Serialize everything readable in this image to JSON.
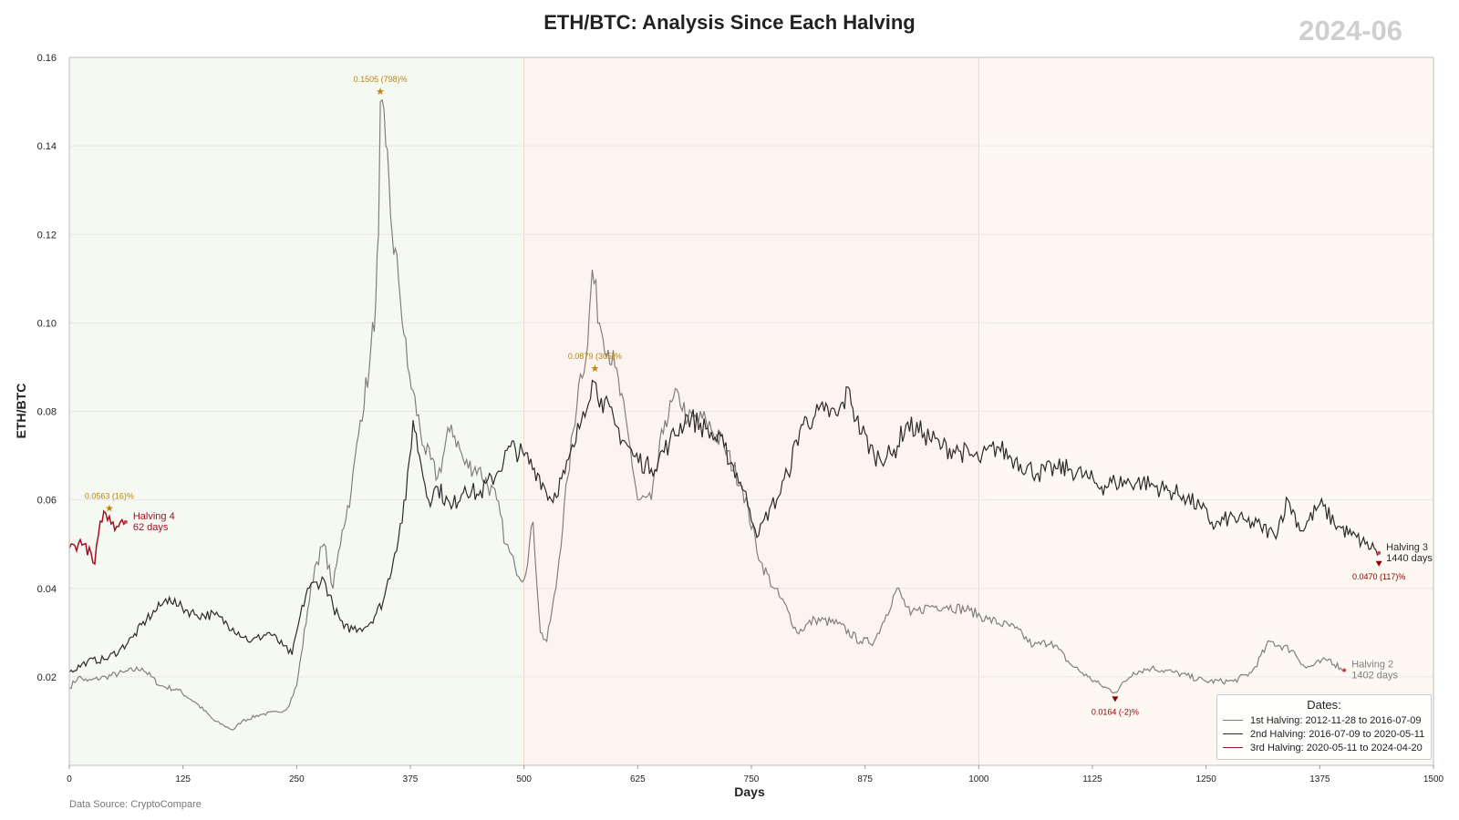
{
  "header": {
    "watermark": "2024-06"
  },
  "footer": {
    "source": "Data Source: CryptoCompare"
  },
  "legend": {
    "title": "Dates:",
    "items": [
      {
        "label": "1st Halving: 2012-11-28 to 2016-07-09",
        "color": "#808080"
      },
      {
        "label": "2nd Halving: 2016-07-09 to 2020-05-11",
        "color": "#2b2b2b"
      },
      {
        "label": "3rd Halving: 2020-05-11 to 2024-04-20",
        "color": "#a01020"
      }
    ]
  },
  "colors": {
    "region1": "#f6f8f2",
    "region2": "#fdf3f1",
    "region3": "#fdf8f1",
    "highlight": "#b8860b",
    "low_marker": "#8b0000",
    "series2": "#808080",
    "series3": "#2b2b2b",
    "series4": "#a01020"
  },
  "chart_data": {
    "type": "line",
    "title": "ETH/BTC: Analysis Since Each Halving",
    "xlabel": "Days",
    "ylabel": "ETH/BTC",
    "xlim": [
      0,
      1500
    ],
    "ylim": [
      0,
      0.16
    ],
    "xticks": [
      0,
      125,
      250,
      375,
      500,
      625,
      750,
      875,
      1000,
      1125,
      1250,
      1375,
      1500
    ],
    "yticks": [
      0.02,
      0.04,
      0.06,
      0.08,
      0.1,
      0.12,
      0.14,
      0.16
    ],
    "grid": true,
    "legend_position": "bottom-right",
    "background_regions": [
      {
        "x0": 0,
        "x1": 500,
        "color_key": "region1"
      },
      {
        "x0": 500,
        "x1": 1000,
        "color_key": "region2"
      },
      {
        "x0": 1000,
        "x1": 1500,
        "color_key": "region3"
      }
    ],
    "series": [
      {
        "id": "halving2",
        "color_key": "series2",
        "end_label": [
          "Halving 2",
          "1402 days"
        ],
        "points": [
          [
            0,
            0.0175
          ],
          [
            10,
            0.02
          ],
          [
            20,
            0.019
          ],
          [
            40,
            0.02
          ],
          [
            60,
            0.021
          ],
          [
            80,
            0.022
          ],
          [
            100,
            0.018
          ],
          [
            120,
            0.017
          ],
          [
            140,
            0.014
          ],
          [
            160,
            0.01
          ],
          [
            170,
            0.009
          ],
          [
            180,
            0.008
          ],
          [
            190,
            0.01
          ],
          [
            210,
            0.0115
          ],
          [
            230,
            0.012
          ],
          [
            240,
            0.013
          ],
          [
            250,
            0.018
          ],
          [
            255,
            0.025
          ],
          [
            262,
            0.035
          ],
          [
            270,
            0.045
          ],
          [
            280,
            0.05
          ],
          [
            290,
            0.04
          ],
          [
            300,
            0.053
          ],
          [
            310,
            0.062
          ],
          [
            320,
            0.078
          ],
          [
            330,
            0.09
          ],
          [
            337,
            0.105
          ],
          [
            340,
            0.12
          ],
          [
            342,
            0.15
          ],
          [
            348,
            0.14
          ],
          [
            355,
            0.12
          ],
          [
            362,
            0.11
          ],
          [
            372,
            0.09
          ],
          [
            390,
            0.072
          ],
          [
            405,
            0.065
          ],
          [
            420,
            0.077
          ],
          [
            435,
            0.068
          ],
          [
            450,
            0.067
          ],
          [
            470,
            0.06
          ],
          [
            480,
            0.05
          ],
          [
            490,
            0.045
          ],
          [
            500,
            0.042
          ],
          [
            510,
            0.055
          ],
          [
            518,
            0.03
          ],
          [
            525,
            0.028
          ],
          [
            535,
            0.04
          ],
          [
            548,
            0.065
          ],
          [
            560,
            0.086
          ],
          [
            570,
            0.095
          ],
          [
            575,
            0.112
          ],
          [
            583,
            0.1
          ],
          [
            600,
            0.09
          ],
          [
            615,
            0.074
          ],
          [
            625,
            0.06
          ],
          [
            640,
            0.06
          ],
          [
            655,
            0.078
          ],
          [
            670,
            0.084
          ],
          [
            680,
            0.078
          ],
          [
            700,
            0.078
          ],
          [
            720,
            0.072
          ],
          [
            740,
            0.063
          ],
          [
            760,
            0.046
          ],
          [
            775,
            0.04
          ],
          [
            790,
            0.035
          ],
          [
            800,
            0.03
          ],
          [
            820,
            0.033
          ],
          [
            845,
            0.032
          ],
          [
            870,
            0.028
          ],
          [
            885,
            0.028
          ],
          [
            898,
            0.034
          ],
          [
            910,
            0.04
          ],
          [
            925,
            0.034
          ],
          [
            945,
            0.036
          ],
          [
            965,
            0.036
          ],
          [
            990,
            0.035
          ],
          [
            1010,
            0.033
          ],
          [
            1040,
            0.031
          ],
          [
            1060,
            0.027
          ],
          [
            1080,
            0.028
          ],
          [
            1100,
            0.023
          ],
          [
            1120,
            0.02
          ],
          [
            1135,
            0.018
          ],
          [
            1150,
            0.0165
          ],
          [
            1170,
            0.021
          ],
          [
            1190,
            0.022
          ],
          [
            1215,
            0.021
          ],
          [
            1250,
            0.019
          ],
          [
            1280,
            0.019
          ],
          [
            1300,
            0.021
          ],
          [
            1320,
            0.028
          ],
          [
            1345,
            0.026
          ],
          [
            1360,
            0.022
          ],
          [
            1385,
            0.024
          ],
          [
            1398,
            0.022
          ],
          [
            1402,
            0.0215
          ]
        ]
      },
      {
        "id": "halving3",
        "color_key": "series3",
        "end_label": [
          "Halving 3",
          "1440 days"
        ],
        "points": [
          [
            0,
            0.021
          ],
          [
            20,
            0.0235
          ],
          [
            40,
            0.024
          ],
          [
            55,
            0.026
          ],
          [
            70,
            0.029
          ],
          [
            85,
            0.033
          ],
          [
            100,
            0.036
          ],
          [
            110,
            0.038
          ],
          [
            120,
            0.036
          ],
          [
            140,
            0.034
          ],
          [
            160,
            0.034
          ],
          [
            180,
            0.031
          ],
          [
            200,
            0.028
          ],
          [
            220,
            0.03
          ],
          [
            235,
            0.027
          ],
          [
            245,
            0.025
          ],
          [
            252,
            0.032
          ],
          [
            262,
            0.04
          ],
          [
            280,
            0.042
          ],
          [
            290,
            0.036
          ],
          [
            302,
            0.031
          ],
          [
            320,
            0.031
          ],
          [
            330,
            0.032
          ],
          [
            345,
            0.037
          ],
          [
            358,
            0.048
          ],
          [
            370,
            0.06
          ],
          [
            378,
            0.078
          ],
          [
            385,
            0.07
          ],
          [
            395,
            0.06
          ],
          [
            405,
            0.063
          ],
          [
            420,
            0.058
          ],
          [
            435,
            0.063
          ],
          [
            450,
            0.061
          ],
          [
            470,
            0.066
          ],
          [
            485,
            0.072
          ],
          [
            500,
            0.07
          ],
          [
            515,
            0.066
          ],
          [
            530,
            0.06
          ],
          [
            545,
            0.066
          ],
          [
            555,
            0.072
          ],
          [
            565,
            0.08
          ],
          [
            575,
            0.087
          ],
          [
            585,
            0.083
          ],
          [
            600,
            0.077
          ],
          [
            620,
            0.07
          ],
          [
            640,
            0.067
          ],
          [
            660,
            0.073
          ],
          [
            680,
            0.079
          ],
          [
            700,
            0.076
          ],
          [
            720,
            0.072
          ],
          [
            738,
            0.064
          ],
          [
            748,
            0.058
          ],
          [
            758,
            0.052
          ],
          [
            770,
            0.058
          ],
          [
            778,
            0.06
          ],
          [
            790,
            0.066
          ],
          [
            805,
            0.077
          ],
          [
            820,
            0.079
          ],
          [
            830,
            0.08
          ],
          [
            845,
            0.079
          ],
          [
            858,
            0.085
          ],
          [
            865,
            0.078
          ],
          [
            885,
            0.07
          ],
          [
            905,
            0.07
          ],
          [
            920,
            0.077
          ],
          [
            940,
            0.075
          ],
          [
            960,
            0.072
          ],
          [
            980,
            0.071
          ],
          [
            1000,
            0.069
          ],
          [
            1020,
            0.072
          ],
          [
            1040,
            0.069
          ],
          [
            1065,
            0.066
          ],
          [
            1085,
            0.067
          ],
          [
            1100,
            0.067
          ],
          [
            1120,
            0.065
          ],
          [
            1135,
            0.063
          ],
          [
            1150,
            0.064
          ],
          [
            1180,
            0.064
          ],
          [
            1210,
            0.062
          ],
          [
            1225,
            0.061
          ],
          [
            1245,
            0.058
          ],
          [
            1260,
            0.054
          ],
          [
            1275,
            0.056
          ],
          [
            1295,
            0.055
          ],
          [
            1310,
            0.054
          ],
          [
            1325,
            0.052
          ],
          [
            1340,
            0.06
          ],
          [
            1355,
            0.053
          ],
          [
            1375,
            0.059
          ],
          [
            1395,
            0.054
          ],
          [
            1410,
            0.052
          ],
          [
            1425,
            0.05
          ],
          [
            1435,
            0.049
          ],
          [
            1440,
            0.048
          ]
        ]
      },
      {
        "id": "halving4",
        "color_key": "series4",
        "end_label": [
          "Halving 4",
          "62 days"
        ],
        "points": [
          [
            0,
            0.049
          ],
          [
            4,
            0.05
          ],
          [
            8,
            0.0485
          ],
          [
            12,
            0.051
          ],
          [
            16,
            0.05
          ],
          [
            20,
            0.0475
          ],
          [
            24,
            0.048
          ],
          [
            28,
            0.0455
          ],
          [
            32,
            0.052
          ],
          [
            36,
            0.055
          ],
          [
            40,
            0.057
          ],
          [
            44,
            0.0563
          ],
          [
            48,
            0.055
          ],
          [
            52,
            0.054
          ],
          [
            56,
            0.055
          ],
          [
            60,
            0.0545
          ],
          [
            62,
            0.055
          ]
        ]
      }
    ],
    "annotations": [
      {
        "type": "peak",
        "x": 342,
        "y": 0.1505,
        "label": "0.1505 (798)%"
      },
      {
        "type": "peak",
        "x": 578,
        "y": 0.0879,
        "label": "0.0879 (305)%"
      },
      {
        "type": "peak",
        "x": 44,
        "y": 0.0563,
        "label": "0.0563 (16)%"
      },
      {
        "type": "low",
        "x": 1150,
        "y": 0.0164,
        "label": "0.0164 (-2)%"
      },
      {
        "type": "low",
        "x": 1440,
        "y": 0.047,
        "label": "0.0470 (117)%"
      }
    ]
  }
}
